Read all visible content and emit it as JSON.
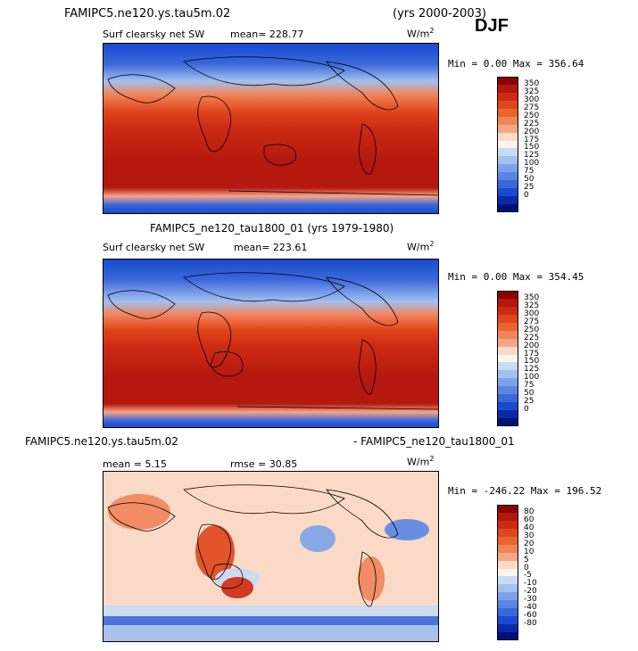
{
  "header": {
    "case_title": "FAMIPC5.ne120.ys.tau5m.02",
    "years": "(yrs 2000-2003)",
    "season": "DJF"
  },
  "panels": [
    {
      "id": "top",
      "title": "",
      "variable": "Surf clearsky net SW",
      "mean_label": "mean= 228.77",
      "units": "W/m",
      "units_exp": "2",
      "minmax": "Min =   0.00 Max = 356.64",
      "colorbar_labels": [
        "350",
        "325",
        "300",
        "275",
        "250",
        "225",
        "200",
        "175",
        "150",
        "125",
        "100",
        "75",
        "50",
        "25",
        "0"
      ],
      "colorbar_colors": [
        "#8b0000",
        "#b4180e",
        "#cc2a14",
        "#e0461c",
        "#ea6430",
        "#f2845a",
        "#f6a686",
        "#fadac6",
        "#fdf4ec",
        "#c8dcf6",
        "#a2c0f0",
        "#7ea2ea",
        "#5a86e2",
        "#3a68da",
        "#1a4ad0",
        "#0a2aa8",
        "#00107a"
      ]
    },
    {
      "id": "middle",
      "title": "FAMIPC5_ne120_tau1800_01 (yrs 1979-1980)",
      "variable": "Surf clearsky net SW",
      "mean_label": "mean= 223.61",
      "units": "W/m",
      "units_exp": "2",
      "minmax": "Min =   0.00 Max = 354.45",
      "colorbar_labels": [
        "350",
        "325",
        "300",
        "275",
        "250",
        "225",
        "200",
        "175",
        "150",
        "125",
        "100",
        "75",
        "50",
        "25",
        "0"
      ],
      "colorbar_colors": [
        "#8b0000",
        "#b4180e",
        "#cc2a14",
        "#e0461c",
        "#ea6430",
        "#f2845a",
        "#f6a686",
        "#fadac6",
        "#fdf4ec",
        "#c8dcf6",
        "#a2c0f0",
        "#7ea2ea",
        "#5a86e2",
        "#3a68da",
        "#1a4ad0",
        "#0a2aa8",
        "#00107a"
      ]
    },
    {
      "id": "bottom",
      "title_left": "FAMIPC5.ne120.ys.tau5m.02",
      "title_right": "- FAMIPC5_ne120_tau1800_01",
      "mean_label": "mean =   5.15",
      "rmse_label": "rmse =  30.85",
      "units": "W/m",
      "units_exp": "2",
      "minmax": "Min = -246.22 Max = 196.52",
      "colorbar_labels": [
        "80",
        "60",
        "40",
        "30",
        "20",
        "10",
        "5",
        "0",
        "-5",
        "-10",
        "-20",
        "-30",
        "-40",
        "-60",
        "-80"
      ],
      "colorbar_colors": [
        "#8b0000",
        "#b4180e",
        "#cc2a14",
        "#e0461c",
        "#ea6430",
        "#f2845a",
        "#f6a686",
        "#fadac6",
        "#fdf4ec",
        "#c8dcf6",
        "#a2c0f0",
        "#7ea2ea",
        "#5a86e2",
        "#3a68da",
        "#1a4ad0",
        "#0a2aa8",
        "#00107a"
      ]
    }
  ]
}
